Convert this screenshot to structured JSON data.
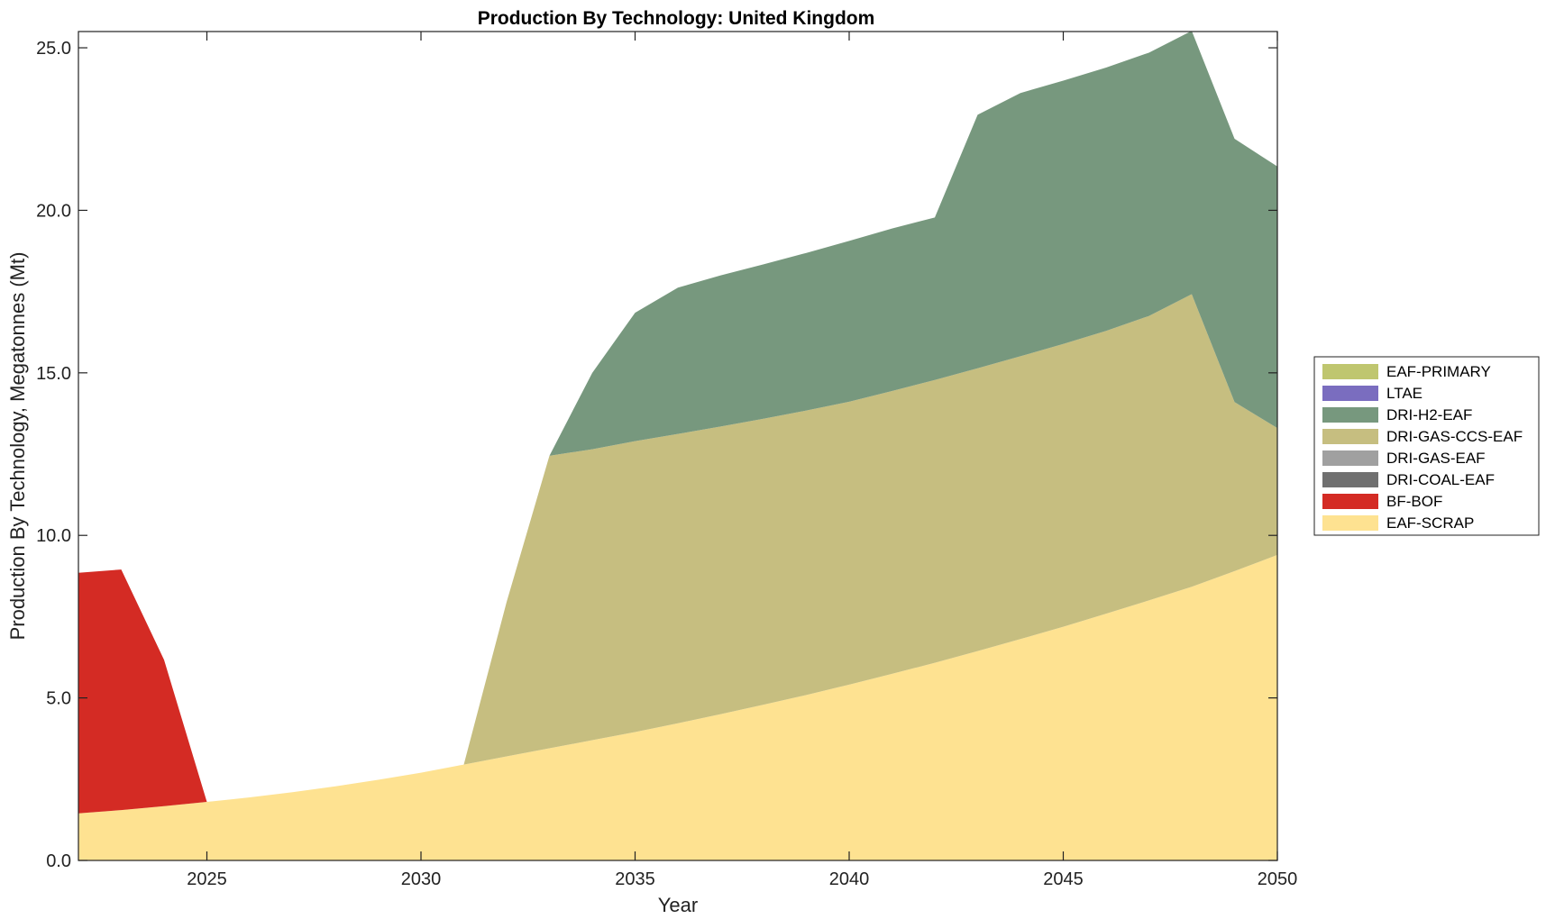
{
  "chart_data": {
    "type": "area",
    "stacked": true,
    "title": "Production By Technology: United Kingdom",
    "xlabel": "Year",
    "ylabel": "Production By Technology, Megatonnes (Mt)",
    "xlim": [
      2022,
      2050
    ],
    "ylim": [
      0,
      25.5
    ],
    "x_ticks": [
      2025,
      2030,
      2035,
      2040,
      2045,
      2050
    ],
    "x_tick_labels": [
      "2025",
      "2030",
      "2035",
      "2040",
      "2045",
      "2050"
    ],
    "y_ticks": [
      0,
      5,
      10,
      15,
      20,
      25
    ],
    "y_tick_labels": [
      "0.0",
      "5.0",
      "10.0",
      "15.0",
      "20.0",
      "25.0"
    ],
    "legend_position": "right",
    "legend_order": [
      "EAF-PRIMARY",
      "LTAE",
      "DRI-H2-EAF",
      "DRI-GAS-CCS-EAF",
      "DRI-GAS-EAF",
      "DRI-COAL-EAF",
      "BF-BOF",
      "EAF-SCRAP"
    ],
    "x": [
      2022,
      2023,
      2024,
      2025,
      2026,
      2027,
      2028,
      2029,
      2030,
      2031,
      2032,
      2033,
      2034,
      2035,
      2036,
      2037,
      2038,
      2039,
      2040,
      2041,
      2042,
      2043,
      2044,
      2045,
      2046,
      2047,
      2048,
      2049,
      2050
    ],
    "series": [
      {
        "name": "EAF-SCRAP",
        "color": "#FEE291",
        "values": [
          1.45,
          1.55,
          1.67,
          1.8,
          1.94,
          2.1,
          2.28,
          2.48,
          2.7,
          2.95,
          3.2,
          3.45,
          3.7,
          3.95,
          4.22,
          4.5,
          4.79,
          5.09,
          5.41,
          5.74,
          6.08,
          6.44,
          6.81,
          7.19,
          7.59,
          8.0,
          8.42,
          8.9,
          9.4
        ]
      },
      {
        "name": "BF-BOF",
        "color": "#D42B24",
        "values": [
          7.4,
          7.4,
          4.5,
          0,
          0,
          0,
          0,
          0,
          0,
          0,
          0,
          0,
          0,
          0,
          0,
          0,
          0,
          0,
          0,
          0,
          0,
          0,
          0,
          0,
          0,
          0,
          0,
          0,
          0
        ]
      },
      {
        "name": "DRI-COAL-EAF",
        "color": "#707070",
        "values": [
          0,
          0,
          0,
          0,
          0,
          0,
          0,
          0,
          0,
          0,
          0,
          0,
          0,
          0,
          0,
          0,
          0,
          0,
          0,
          0,
          0,
          0,
          0,
          0,
          0,
          0,
          0,
          0,
          0
        ]
      },
      {
        "name": "DRI-GAS-EAF",
        "color": "#A0A0A0",
        "values": [
          0,
          0,
          0,
          0,
          0,
          0,
          0,
          0,
          0,
          0,
          0,
          0,
          0,
          0,
          0,
          0,
          0,
          0,
          0,
          0,
          0,
          0,
          0,
          0,
          0,
          0,
          0,
          0,
          0
        ]
      },
      {
        "name": "DRI-GAS-CCS-EAF",
        "color": "#C6BE80",
        "values": [
          0,
          0,
          0,
          0,
          0,
          0,
          0,
          0,
          0,
          0,
          4.75,
          9.0,
          8.95,
          8.95,
          8.9,
          8.85,
          8.8,
          8.75,
          8.7,
          8.7,
          8.7,
          8.7,
          8.7,
          8.7,
          8.7,
          8.75,
          9.0,
          5.2,
          3.9
        ]
      },
      {
        "name": "DRI-H2-EAF",
        "color": "#77987E",
        "values": [
          0,
          0,
          0,
          0,
          0,
          0,
          0,
          0,
          0,
          0,
          0,
          0,
          2.35,
          3.95,
          4.5,
          4.65,
          4.75,
          4.85,
          4.95,
          5.0,
          5.0,
          7.8,
          8.1,
          8.1,
          8.1,
          8.1,
          8.1,
          8.1,
          8.05
        ]
      },
      {
        "name": "LTAE",
        "color": "#7A6DBF",
        "values": [
          0,
          0,
          0,
          0,
          0,
          0,
          0,
          0,
          0,
          0,
          0,
          0,
          0,
          0,
          0,
          0,
          0,
          0,
          0,
          0,
          0,
          0,
          0,
          0,
          0,
          0,
          0,
          0,
          0
        ]
      },
      {
        "name": "EAF-PRIMARY",
        "color": "#BFC66F",
        "values": [
          0,
          0,
          0,
          0,
          0,
          0,
          0,
          0,
          0,
          0,
          0,
          0,
          0,
          0,
          0,
          0,
          0,
          0,
          0,
          0,
          0,
          0,
          0,
          0,
          0,
          0,
          0,
          0,
          0
        ]
      }
    ]
  }
}
